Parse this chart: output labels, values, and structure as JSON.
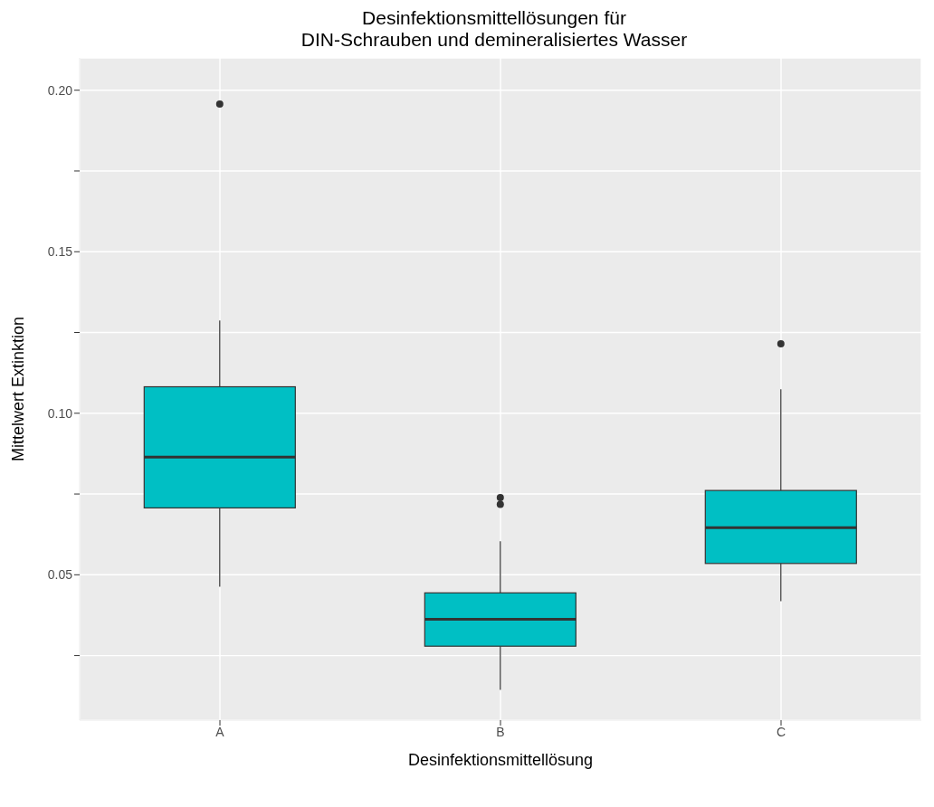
{
  "chart_data": {
    "type": "box",
    "title": "Desinfektionsmittellösungen für\nDIN-Schrauben und demineralisiertes Wasser",
    "xlabel": "Desinfektionsmittellösung",
    "ylabel": "Mittelwert Extinktion",
    "categories": [
      "A",
      "B",
      "C"
    ],
    "color": "#00bfc4",
    "boxes": [
      {
        "low": 0.0463,
        "q1": 0.0707,
        "median": 0.0864,
        "q3": 0.1082,
        "high": 0.1287,
        "outliers": [
          0.1957
        ]
      },
      {
        "low": 0.0144,
        "q1": 0.0279,
        "median": 0.0362,
        "q3": 0.0444,
        "high": 0.0604,
        "outliers": [
          0.0718,
          0.0739
        ]
      },
      {
        "low": 0.0418,
        "q1": 0.0535,
        "median": 0.0646,
        "q3": 0.0761,
        "high": 0.1074,
        "outliers": [
          0.1215
        ]
      }
    ],
    "ylim": [
      0.005,
      0.21
    ],
    "yticks": [
      {
        "value": 0.025,
        "label": null
      },
      {
        "value": 0.05,
        "label": "0.05"
      },
      {
        "value": 0.075,
        "label": null
      },
      {
        "value": 0.1,
        "label": "0.10"
      },
      {
        "value": 0.125,
        "label": null
      },
      {
        "value": 0.15,
        "label": "0.15"
      },
      {
        "value": 0.175,
        "label": null
      },
      {
        "value": 0.2,
        "label": "0.20"
      }
    ],
    "grid": true
  }
}
